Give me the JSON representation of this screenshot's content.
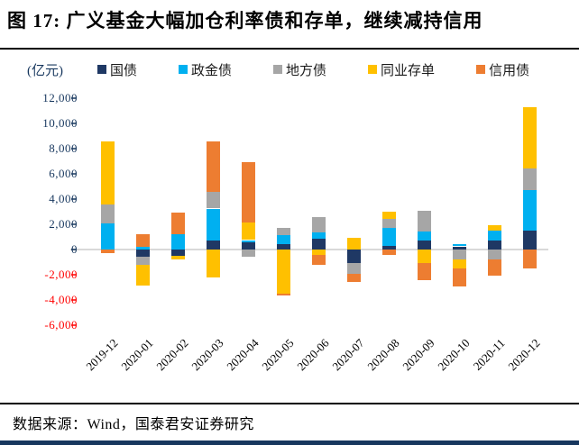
{
  "title": "图 17:  广义基金大幅加仓利率债和存单，继续减持信用",
  "unit_label": "(亿元)",
  "source_text": "数据来源：Wind，国泰君安证券研究",
  "colors": {
    "govt_bond": "#1f3864",
    "policy_bank_bond": "#00b0f0",
    "local_govt_bond": "#a6a6a6",
    "ncd": "#ffc000",
    "credit_bond": "#ed7d31",
    "axis_label_positive": "#17375e",
    "axis_label_negative": "#ff0000",
    "zero_line": "#d9d9d9",
    "bottom_border": "#17375e"
  },
  "chart_data": {
    "type": "bar",
    "stacked": true,
    "title": "广义基金大幅加仓利率债和存单，继续减持信用",
    "ylabel": "(亿元)",
    "xlabel": "",
    "grid": false,
    "legend_position": "top",
    "ylim": [
      -6000,
      12000
    ],
    "y_ticks": [
      {
        "value": 12000,
        "label": "12,000"
      },
      {
        "value": 10000,
        "label": "10,000"
      },
      {
        "value": 8000,
        "label": "8,000"
      },
      {
        "value": 6000,
        "label": "6,000"
      },
      {
        "value": 4000,
        "label": "4,000"
      },
      {
        "value": 2000,
        "label": "2,000"
      },
      {
        "value": 0,
        "label": "0"
      },
      {
        "value": -2000,
        "label": "-2,000"
      },
      {
        "value": -4000,
        "label": "-4,000"
      },
      {
        "value": -6000,
        "label": "-6,000"
      }
    ],
    "categories": [
      "2019-12",
      "2020-01",
      "2020-02",
      "2020-03",
      "2020-04",
      "2020-05",
      "2020-06",
      "2020-07",
      "2020-08",
      "2020-09",
      "2020-10",
      "2020-11",
      "2020-12"
    ],
    "series": [
      {
        "name": "国债",
        "key": "govt-bond",
        "color": "#1f3864",
        "values": [
          0,
          -600,
          -500,
          750,
          550,
          400,
          850,
          -1100,
          300,
          700,
          250,
          700,
          1500
        ]
      },
      {
        "name": "政金债",
        "key": "policy-bank-bond",
        "color": "#00b0f0",
        "values": [
          2100,
          250,
          1200,
          2500,
          200,
          750,
          500,
          0,
          1400,
          700,
          150,
          800,
          3200
        ]
      },
      {
        "name": "地方债",
        "key": "local-govt-bond",
        "color": "#a6a6a6",
        "values": [
          1500,
          -600,
          0,
          1300,
          -550,
          550,
          1200,
          -850,
          700,
          1700,
          -800,
          -750,
          1700
        ]
      },
      {
        "name": "同业存单",
        "key": "ncd",
        "color": "#ffc000",
        "values": [
          5000,
          -1650,
          -250,
          -2200,
          1400,
          -3500,
          -450,
          900,
          600,
          -1100,
          -700,
          400,
          4900
        ]
      },
      {
        "name": "信用债",
        "key": "credit-bond",
        "color": "#ed7d31",
        "values": [
          -250,
          1000,
          1700,
          4050,
          4800,
          -150,
          -800,
          -650,
          -400,
          -1300,
          -1400,
          -1350,
          -1500
        ]
      }
    ]
  }
}
